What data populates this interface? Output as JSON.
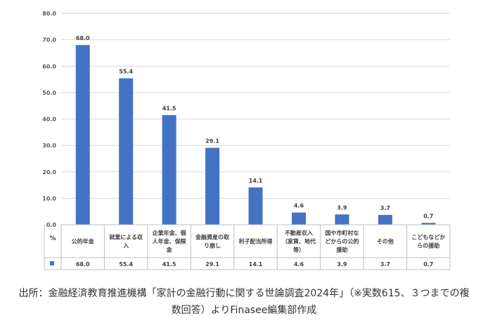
{
  "chart_data": {
    "type": "bar",
    "categories": [
      "公的年金",
      "就業による収入",
      "企業年金、個人年金、保険金",
      "金融資産の取り崩し",
      "利子配当所得",
      "不動産収入（家賃、地代等）",
      "国や市町村などからの公的援助",
      "その他",
      "こどもなどからの援助"
    ],
    "category_lines": [
      [
        "公的年金"
      ],
      [
        "就業による収",
        "入"
      ],
      [
        "企業年金、個",
        "人年金、保険",
        "金"
      ],
      [
        "金融資産の取",
        "り崩し"
      ],
      [
        "利子配当所得"
      ],
      [
        "不動産収入",
        "（家賃、地代",
        "等）"
      ],
      [
        "国や市町村な",
        "どからの公的",
        "援助"
      ],
      [
        "その他"
      ],
      [
        "こどもなどか",
        "らの援助"
      ]
    ],
    "values": [
      68.0,
      55.4,
      41.5,
      29.1,
      14.1,
      4.6,
      3.9,
      3.7,
      0.7
    ],
    "value_labels": [
      "68.0",
      "55.4",
      "41.5",
      "29.1",
      "14.1",
      "4.6",
      "3.9",
      "3.7",
      "0.7"
    ],
    "y_ticks": [
      "0.0",
      "10.0",
      "20.0",
      "30.0",
      "40.0",
      "50.0",
      "60.0",
      "70.0",
      "80.0"
    ],
    "ylim": [
      0,
      80
    ],
    "ylabel": "%",
    "grid": true,
    "bar_color": "#4472C4",
    "data_table": true
  },
  "caption": {
    "line1": "出所：金融経済教育推進機構「家計の金融行動に関する世論調査2024年」（※実数615、３つまでの複",
    "line2": "数回答）よりFinasee編集部作成"
  }
}
